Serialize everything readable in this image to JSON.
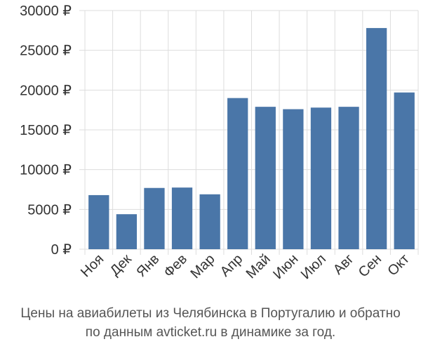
{
  "chart_data": {
    "type": "bar",
    "categories": [
      "Ноя",
      "Дек",
      "Янв",
      "Фев",
      "Мар",
      "Апр",
      "Май",
      "Июн",
      "Июл",
      "Авг",
      "Сен",
      "Окт"
    ],
    "values": [
      6800,
      4400,
      7700,
      7750,
      6900,
      19000,
      17900,
      17600,
      17800,
      17900,
      27800,
      19700
    ],
    "ylim": [
      0,
      30000
    ],
    "yticks": [
      0,
      5000,
      10000,
      15000,
      20000,
      25000,
      30000
    ],
    "ytick_labels": [
      "0 ₽",
      "5000 ₽",
      "10000 ₽",
      "15000 ₽",
      "20000 ₽",
      "25000 ₽",
      "30000 ₽"
    ],
    "grid": true,
    "bar_color": "#4a76a8",
    "grid_color": "#dddddd"
  },
  "caption": {
    "line1": "Цены на авиабилеты из Челябинска в Португалию и обратно",
    "line2": "по данным avticket.ru в динамике за год."
  }
}
